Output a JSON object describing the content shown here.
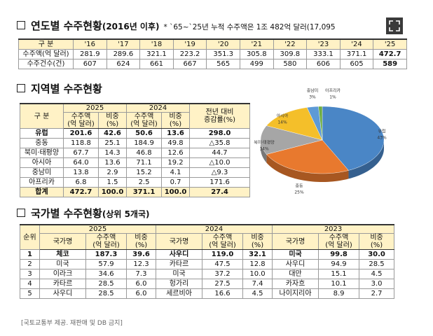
{
  "yearly": {
    "title": "연도별 수주현황",
    "subtitle": "(2016년 이후)",
    "note": "* `65~`25년 누적 수주액은 1조 482억 달러(17,095",
    "header": [
      "구 분",
      "'16",
      "'17",
      "'18",
      "'19",
      "'20",
      "'21",
      "'22",
      "'23",
      "'24",
      "'25"
    ],
    "rows": [
      [
        "수주액(억 달러)",
        "281.9",
        "289.6",
        "321.1",
        "223.2",
        "351.3",
        "305.8",
        "309.8",
        "333.1",
        "371.1",
        "472.7"
      ],
      [
        "수주건수(건)",
        "607",
        "624",
        "661",
        "667",
        "565",
        "499",
        "580",
        "606",
        "605",
        "589"
      ]
    ]
  },
  "regional": {
    "title": "지역별 수주현황",
    "header_top": [
      "구 분",
      "2025",
      "2024",
      "전년 대비\n증감률(%)"
    ],
    "header_sub": [
      "수주액\n(억 달러)",
      "비중\n(%)",
      "수주액\n(억 달러)",
      "비중\n(%)"
    ],
    "rows": [
      [
        "유럽",
        "201.6",
        "42.6",
        "50.6",
        "13.6",
        "298.0"
      ],
      [
        "중동",
        "118.8",
        "25.1",
        "184.9",
        "49.8",
        "△35.8"
      ],
      [
        "북미·태평양",
        "67.7",
        "14.3",
        "46.8",
        "12.6",
        "44.7"
      ],
      [
        "아시아",
        "64.0",
        "13.6",
        "71.1",
        "19.2",
        "△10.0"
      ],
      [
        "중남미",
        "13.8",
        "2.9",
        "15.2",
        "4.1",
        "△9.3"
      ],
      [
        "아프리카",
        "6.8",
        "1.5",
        "2.5",
        "0.7",
        "171.6"
      ],
      [
        "합계",
        "472.7",
        "100.0",
        "371.1",
        "100.0",
        "27.4"
      ]
    ]
  },
  "chart_data": {
    "type": "pie",
    "categories": [
      "유럽",
      "중동",
      "북미·태평양",
      "아시아",
      "중남미",
      "아프리카"
    ],
    "values": [
      43,
      25,
      14,
      14,
      3,
      1
    ],
    "value_labels": [
      "43%",
      "25%",
      "14%",
      "14%",
      "3%",
      "1%"
    ],
    "colors": [
      "#4a86c6",
      "#e8792e",
      "#a6a6a6",
      "#f4bf2a",
      "#5d9ad6",
      "#6fae45"
    ]
  },
  "country": {
    "title": "국가별 수주현황",
    "subtitle": "(상위 5개국)",
    "header_top": [
      "순위",
      "2025",
      "2024",
      "2023"
    ],
    "header_sub": [
      "국가명",
      "수주액\n(억 달러)",
      "비중\n(%)",
      "국가명",
      "수주액\n(억 달러)",
      "비중\n(%)",
      "국가명",
      "수주액\n(억 달러)",
      "비중\n(%)"
    ],
    "rows": [
      [
        "1",
        "체코",
        "187.3",
        "39.6",
        "사우디",
        "119.0",
        "32.1",
        "미국",
        "99.8",
        "30.0"
      ],
      [
        "2",
        "미국",
        "57.9",
        "12.3",
        "카타르",
        "47.5",
        "12.8",
        "사우디",
        "94.9",
        "28.5"
      ],
      [
        "3",
        "이라크",
        "34.6",
        "7.3",
        "미국",
        "37.2",
        "10.0",
        "대만",
        "15.1",
        "4.5"
      ],
      [
        "4",
        "카타르",
        "28.5",
        "6.0",
        "헝가리",
        "27.5",
        "7.4",
        "카자흐",
        "10.1",
        "3.0"
      ],
      [
        "5",
        "사우디",
        "28.5",
        "6.0",
        "세르비아",
        "16.6",
        "4.5",
        "나이지리아",
        "8.9",
        "2.7"
      ]
    ]
  },
  "footer": "[국토교통부 제공. 재판매 및 DB 금지]"
}
